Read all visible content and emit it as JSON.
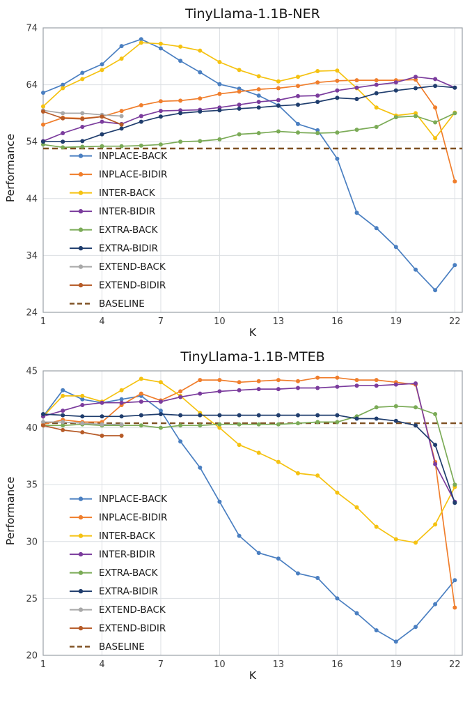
{
  "chart_data": [
    {
      "type": "line",
      "title": "TinyLlama-1.1B-NER",
      "xlabel": "K",
      "ylabel": "Performance",
      "xlim": [
        1,
        22.38
      ],
      "ylim": [
        24,
        74
      ],
      "x_ticks": [
        1,
        4,
        7,
        10,
        13,
        16,
        19,
        22
      ],
      "y_ticks": [
        24,
        34,
        44,
        54,
        64,
        74
      ],
      "grid": true,
      "legend_position": "lower-left",
      "x": [
        1,
        2,
        3,
        4,
        5,
        6,
        7,
        8,
        9,
        10,
        11,
        12,
        13,
        14,
        15,
        16,
        17,
        18,
        19,
        20,
        21,
        22
      ],
      "baseline": {
        "label": "BASELINE",
        "value": 52.8,
        "color": "#7d4f21"
      },
      "series": [
        {
          "name": "INPLACE-BACK",
          "color": "#4a7fc1",
          "values": [
            62.6,
            64.0,
            66.1,
            67.6,
            70.8,
            72.0,
            70.4,
            68.2,
            66.2,
            64.1,
            63.3,
            62.1,
            60.4,
            57.1,
            56.0,
            51.0,
            41.5,
            38.8,
            35.5,
            31.5,
            27.9,
            32.3
          ]
        },
        {
          "name": "INPLACE-BIDIR",
          "color": "#f07e2c",
          "values": [
            57.0,
            58.2,
            58.1,
            58.4,
            59.4,
            60.4,
            61.1,
            61.2,
            61.6,
            62.4,
            62.8,
            63.2,
            63.4,
            63.8,
            64.4,
            64.7,
            64.8,
            64.8,
            64.8,
            64.9,
            60.0,
            47.0
          ]
        },
        {
          "name": "INTER-BACK",
          "color": "#f5c211",
          "values": [
            60.2,
            63.4,
            65.0,
            66.6,
            68.6,
            71.4,
            71.2,
            70.7,
            70.0,
            68.0,
            66.6,
            65.5,
            64.6,
            65.4,
            66.4,
            66.5,
            63.4,
            60.0,
            58.6,
            59.0,
            54.6,
            59.1
          ]
        },
        {
          "name": "INTER-BIDIR",
          "color": "#7b3c9d",
          "values": [
            54.1,
            55.5,
            56.6,
            57.5,
            57.1,
            58.5,
            59.4,
            59.5,
            59.6,
            60.0,
            60.5,
            61.0,
            61.3,
            62.0,
            62.1,
            63.0,
            63.5,
            64.0,
            64.4,
            65.4,
            65.0,
            63.5
          ]
        },
        {
          "name": "EXTRA-BACK",
          "color": "#7bab57",
          "values": [
            53.5,
            53.0,
            53.1,
            53.2,
            53.2,
            53.3,
            53.5,
            54.0,
            54.1,
            54.4,
            55.3,
            55.5,
            55.8,
            55.6,
            55.5,
            55.6,
            56.1,
            56.6,
            58.3,
            58.5,
            57.4,
            59.0
          ]
        },
        {
          "name": "EXTRA-BIDIR",
          "color": "#1f3d6d",
          "values": [
            54.0,
            54.0,
            54.1,
            55.3,
            56.3,
            57.5,
            58.4,
            59.0,
            59.3,
            59.5,
            59.8,
            60.0,
            60.3,
            60.5,
            61.0,
            61.7,
            61.5,
            62.5,
            63.0,
            63.4,
            63.8,
            63.5
          ]
        },
        {
          "name": "EXTEND-BACK",
          "color": "#a8a8a8",
          "values": [
            59.5,
            59.0,
            59.0,
            58.7,
            58.5
          ]
        },
        {
          "name": "EXTEND-BIDIR",
          "color": "#b65b28",
          "values": [
            59.3,
            58.1,
            58.0,
            58.4,
            57.0
          ]
        }
      ]
    },
    {
      "type": "line",
      "title": "TinyLlama-1.1B-MTEB",
      "xlabel": "K",
      "ylabel": "Performance",
      "xlim": [
        1,
        22.38
      ],
      "ylim": [
        20,
        45
      ],
      "x_ticks": [
        1,
        4,
        7,
        10,
        13,
        16,
        19,
        22
      ],
      "y_ticks": [
        20,
        25,
        30,
        35,
        40,
        45
      ],
      "grid": true,
      "legend_position": "lower-left",
      "x": [
        1,
        2,
        3,
        4,
        5,
        6,
        7,
        8,
        9,
        10,
        11,
        12,
        13,
        14,
        15,
        16,
        17,
        18,
        19,
        20,
        21,
        22
      ],
      "baseline": {
        "label": "BASELINE",
        "value": 40.4,
        "color": "#7d4f21"
      },
      "series": [
        {
          "name": "INPLACE-BACK",
          "color": "#4a7fc1",
          "values": [
            41.0,
            43.3,
            42.5,
            42.2,
            42.5,
            42.8,
            41.5,
            38.8,
            36.5,
            33.5,
            30.5,
            29.0,
            28.5,
            27.2,
            26.8,
            25.0,
            23.7,
            22.2,
            21.2,
            22.5,
            24.5,
            26.6
          ]
        },
        {
          "name": "INPLACE-BIDIR",
          "color": "#f07e2c",
          "values": [
            40.3,
            40.7,
            40.5,
            40.5,
            42.0,
            43.0,
            42.4,
            43.2,
            44.2,
            44.2,
            44.0,
            44.1,
            44.2,
            44.1,
            44.4,
            44.4,
            44.2,
            44.2,
            44.0,
            43.8,
            37.0,
            24.2
          ]
        },
        {
          "name": "INTER-BACK",
          "color": "#f5c211",
          "values": [
            41.0,
            42.8,
            42.8,
            42.3,
            43.3,
            44.3,
            44.0,
            42.8,
            41.3,
            40.0,
            38.5,
            37.8,
            37.0,
            36.0,
            35.8,
            34.3,
            33.0,
            31.3,
            30.2,
            29.9,
            31.5,
            34.8
          ]
        },
        {
          "name": "INTER-BIDIR",
          "color": "#7b3c9d",
          "values": [
            41.0,
            41.5,
            42.0,
            42.2,
            42.2,
            42.3,
            42.3,
            42.7,
            43.0,
            43.2,
            43.3,
            43.4,
            43.4,
            43.5,
            43.5,
            43.6,
            43.7,
            43.7,
            43.8,
            43.9,
            36.8,
            33.5
          ]
        },
        {
          "name": "EXTRA-BACK",
          "color": "#7bab57",
          "values": [
            40.2,
            40.2,
            40.3,
            40.2,
            40.2,
            40.2,
            40.0,
            40.2,
            40.2,
            40.3,
            40.3,
            40.3,
            40.3,
            40.4,
            40.5,
            40.5,
            41.0,
            41.8,
            41.9,
            41.8,
            41.2,
            35.0
          ]
        },
        {
          "name": "EXTRA-BIDIR",
          "color": "#1f3d6d",
          "values": [
            41.2,
            41.1,
            41.0,
            41.0,
            41.0,
            41.1,
            41.2,
            41.1,
            41.1,
            41.1,
            41.1,
            41.1,
            41.1,
            41.1,
            41.1,
            41.1,
            40.8,
            40.8,
            40.6,
            40.2,
            38.5,
            33.4
          ]
        },
        {
          "name": "EXTEND-BACK",
          "color": "#a8a8a8",
          "values": [
            40.5,
            40.5,
            40.4,
            40.3,
            40.3
          ]
        },
        {
          "name": "EXTEND-BIDIR",
          "color": "#b65b28",
          "values": [
            40.2,
            39.8,
            39.6,
            39.3,
            39.3
          ]
        }
      ]
    }
  ],
  "style": {
    "grid_color": "#dcdfe3",
    "spine_color": "#9aa0a6",
    "line_width": 1.7,
    "marker_radius": 3
  }
}
